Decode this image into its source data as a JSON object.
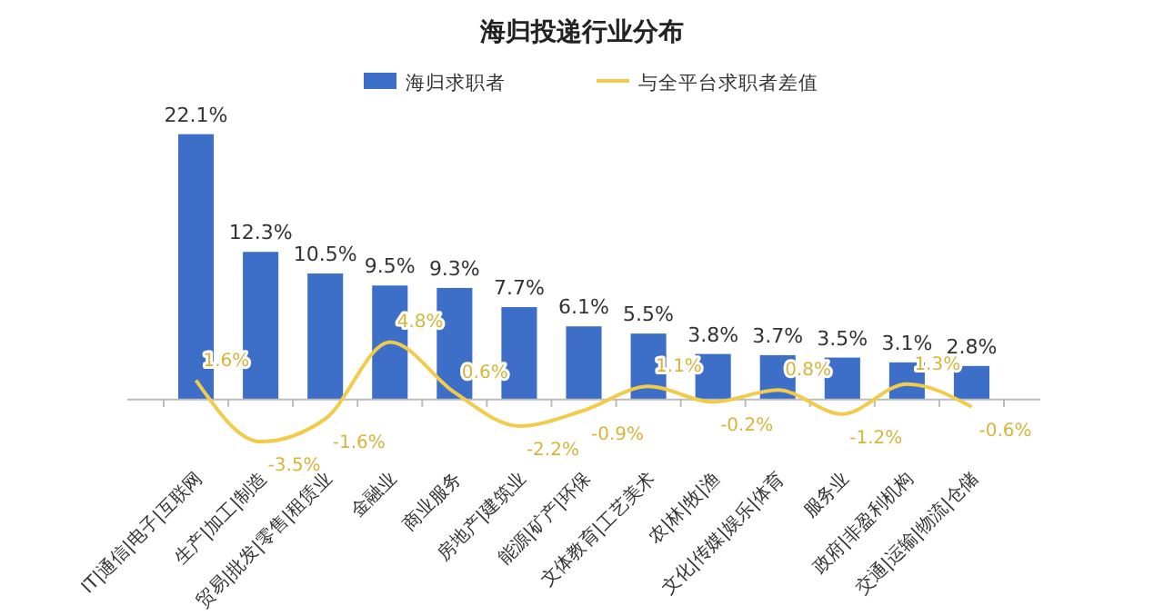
{
  "chart_data": {
    "type": "bar",
    "title": "海归投递行业分布",
    "categories": [
      "IT|通信|电子|互联网",
      "生产|加工|制造",
      "贸易|批发|零售|租赁业",
      "金融业",
      "商业服务",
      "房地产|建筑业",
      "能源|矿产|环保",
      "文体教育|工艺美术",
      "农|林|牧|渔",
      "文化|传媒|娱乐|体育",
      "服务业",
      "政府|非盈利机构",
      "交通|运输|物流|仓储"
    ],
    "series": [
      {
        "name": "海归求职者",
        "color": "#3d6fc9",
        "values": [
          22.1,
          12.3,
          10.5,
          9.5,
          9.3,
          7.7,
          6.1,
          5.5,
          3.8,
          3.7,
          3.5,
          3.1,
          2.8
        ],
        "value_labels": [
          "22.1%",
          "12.3%",
          "10.5%",
          "9.5%",
          "9.3%",
          "7.7%",
          "6.1%",
          "5.5%",
          "3.8%",
          "3.7%",
          "3.5%",
          "3.1%",
          "2.8%"
        ]
      },
      {
        "name": "与全平台求职者差值",
        "type": "line",
        "color": "#f2cb4b",
        "values": [
          1.6,
          -3.5,
          -1.6,
          4.8,
          0.6,
          -2.2,
          -0.9,
          1.1,
          -0.2,
          0.8,
          -1.2,
          1.3,
          -0.6
        ],
        "value_labels": [
          "1.6%",
          "-3.5%",
          "-1.6%",
          "4.8%",
          "0.6%",
          "-2.2%",
          "-0.9%",
          "1.1%",
          "-0.2%",
          "0.8%",
          "-1.2%",
          "1.3%",
          "-0.6%"
        ]
      }
    ],
    "tick_labels": "x",
    "legend": "top",
    "marker": "none",
    "line_style": "solid"
  }
}
